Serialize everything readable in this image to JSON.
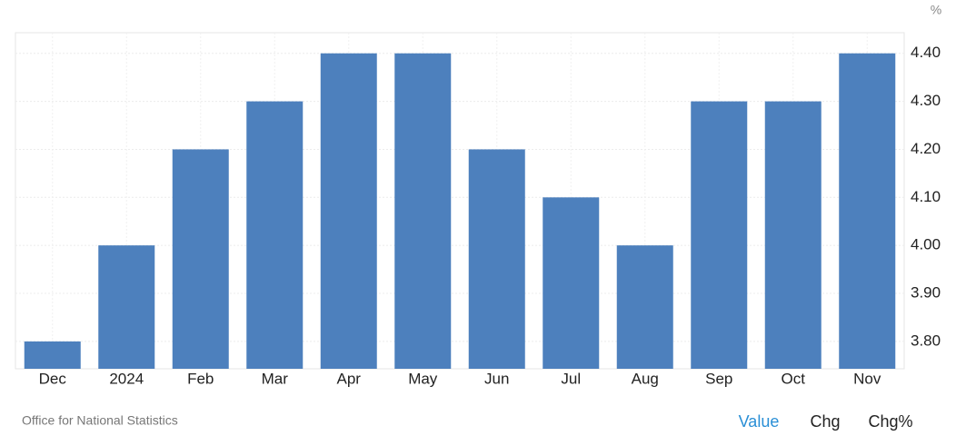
{
  "chart_data": {
    "type": "bar",
    "unit": "%",
    "categories": [
      "Dec",
      "2024",
      "Feb",
      "Mar",
      "Apr",
      "May",
      "Jun",
      "Jul",
      "Aug",
      "Sep",
      "Oct",
      "Nov"
    ],
    "values": [
      3.8,
      4.0,
      4.2,
      4.3,
      4.4,
      4.4,
      4.2,
      4.1,
      4.0,
      4.3,
      4.3,
      4.4
    ],
    "color": "#4d80bd",
    "ylim": [
      3.743,
      4.443
    ],
    "yticks": [
      {
        "value": 3.8,
        "label": "3.80"
      },
      {
        "value": 3.9,
        "label": "3.90"
      },
      {
        "value": 4.0,
        "label": "4.00"
      },
      {
        "value": 4.1,
        "label": "4.10"
      },
      {
        "value": 4.2,
        "label": "4.20"
      },
      {
        "value": 4.3,
        "label": "4.30"
      },
      {
        "value": 4.4,
        "label": "4.40"
      }
    ],
    "grid": true
  },
  "footer": {
    "source": "Office for National Statistics",
    "buttons": [
      "Value",
      "Chg",
      "Chg%"
    ]
  }
}
